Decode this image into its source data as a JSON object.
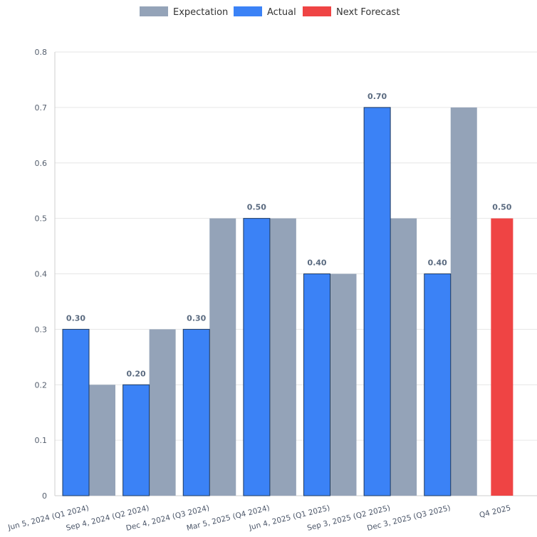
{
  "chart_data": {
    "type": "bar",
    "categories": [
      "Jun 5, 2024 (Q1 2024)",
      "Sep 4, 2024 (Q2 2024)",
      "Dec 4, 2024 (Q3 2024)",
      "Mar 5, 2025 (Q4 2024)",
      "Jun 4, 2025 (Q1 2025)",
      "Sep 3, 2025 (Q2 2025)",
      "Dec 3, 2025 (Q3 2025)",
      "Q4 2025"
    ],
    "series": [
      {
        "name": "Expectation",
        "color": "#94a3b8",
        "values": [
          0.2,
          0.3,
          0.5,
          0.5,
          0.4,
          0.5,
          0.7,
          null
        ]
      },
      {
        "name": "Actual",
        "color": "#3b82f6",
        "values": [
          0.3,
          0.2,
          0.3,
          0.5,
          0.4,
          0.7,
          0.4,
          null
        ]
      },
      {
        "name": "Next Forecast",
        "color": "#ef4444",
        "values": [
          null,
          null,
          null,
          null,
          null,
          null,
          null,
          0.5
        ]
      }
    ],
    "data_labels": [
      "0.30",
      "0.20",
      "0.30",
      "0.50",
      "0.40",
      "0.70",
      "0.40",
      "0.50"
    ],
    "y_ticks": [
      "0",
      "0.1",
      "0.2",
      "0.3",
      "0.4",
      "0.5",
      "0.6",
      "0.7",
      "0.8"
    ],
    "ylim": [
      0,
      0.8
    ],
    "title": "",
    "xlabel": "",
    "ylabel": "",
    "grid": true,
    "legend_position": "top-center"
  }
}
